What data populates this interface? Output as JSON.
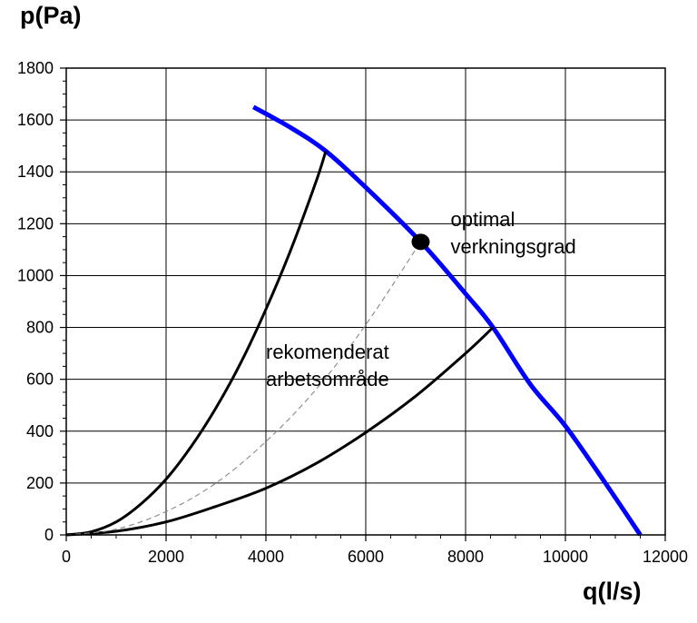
{
  "chart_data": {
    "type": "line",
    "ylabel": "p(Pa)",
    "xlabel": "q(l/s)",
    "xlim": [
      0,
      12000
    ],
    "ylim": [
      0,
      1800
    ],
    "x_ticks": [
      "0",
      "2000",
      "4000",
      "6000",
      "8000",
      "10000",
      "12000"
    ],
    "y_ticks": [
      "0",
      "200",
      "400",
      "600",
      "800",
      "1000",
      "1200",
      "1400",
      "1600",
      "1800"
    ],
    "grid": true,
    "series": [
      {
        "color": "#0000ff",
        "x": [
          3750,
          4500,
          5200,
          6000,
          7100,
          8000,
          8550,
          9300,
          10000,
          10800,
          11500
        ],
        "y": [
          1650,
          1570,
          1480,
          1340,
          1130,
          930,
          800,
          580,
          420,
          200,
          0
        ]
      },
      {
        "color": "#000000",
        "x": [
          0,
          500,
          1000,
          1500,
          2000,
          2500,
          3000,
          3500,
          4000,
          4500,
          5000,
          5200
        ],
        "y": [
          0,
          12,
          50,
          120,
          215,
          340,
          490,
          665,
          870,
          1100,
          1360,
          1480
        ]
      },
      {
        "color": "#000000",
        "x": [
          0,
          1000,
          2000,
          3000,
          4000,
          5000,
          6000,
          7000,
          8000,
          8550
        ],
        "y": [
          0,
          14,
          50,
          110,
          180,
          275,
          395,
          535,
          700,
          800
        ]
      },
      {
        "color": "#888888",
        "x": [
          0,
          1000,
          2000,
          3000,
          4000,
          5000,
          6000,
          7100
        ],
        "y": [
          0,
          22,
          90,
          200,
          360,
          560,
          810,
          1130
        ]
      }
    ],
    "points": [
      {
        "x": 7100,
        "y": 1130
      }
    ],
    "annotations": [
      {
        "lines": [
          "optimal",
          "verkningsgrad"
        ],
        "x": 7700,
        "y": 1190
      },
      {
        "lines": [
          "rekomenderat",
          "arbetsområde"
        ],
        "x": 4000,
        "y": 680
      }
    ]
  }
}
